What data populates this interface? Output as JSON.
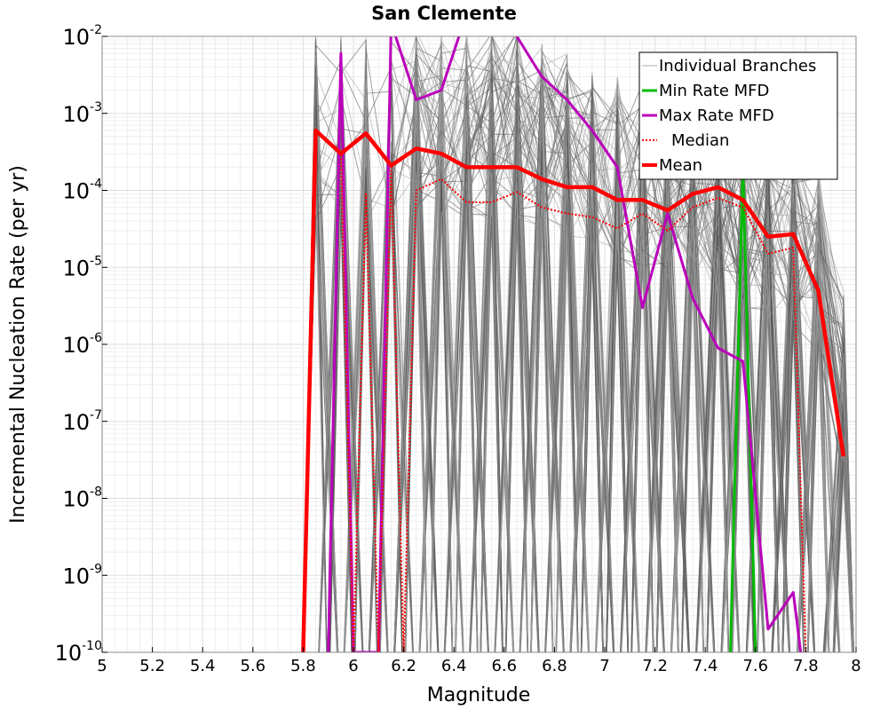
{
  "chart_data": {
    "type": "line",
    "title": "San Clemente",
    "xlabel": "Magnitude",
    "ylabel": "Incremental Nucleation Rate (per yr)",
    "xlim": [
      5,
      8
    ],
    "ylim": [
      1e-10,
      0.01
    ],
    "yscale": "log",
    "grid": true,
    "legend_position": "top-right",
    "x_ticks": [
      "5",
      "5.2",
      "5.4",
      "5.6",
      "5.8",
      "6",
      "6.2",
      "6.4",
      "6.6",
      "6.8",
      "7",
      "7.2",
      "7.4",
      "7.6",
      "7.8",
      "8"
    ],
    "y_ticks": [
      {
        "base": "10",
        "exp": "-10"
      },
      {
        "base": "10",
        "exp": "-9"
      },
      {
        "base": "10",
        "exp": "-8"
      },
      {
        "base": "10",
        "exp": "-7"
      },
      {
        "base": "10",
        "exp": "-6"
      },
      {
        "base": "10",
        "exp": "-5"
      },
      {
        "base": "10",
        "exp": "-4"
      },
      {
        "base": "10",
        "exp": "-3"
      },
      {
        "base": "10",
        "exp": "-2"
      }
    ],
    "series": [
      {
        "name": "Individual Branches",
        "color": "#555555",
        "style": "band",
        "x_bins": [
          5.85,
          5.95,
          6.05,
          6.15,
          6.25,
          6.35,
          6.45,
          6.55,
          6.65,
          6.75,
          6.85,
          6.95,
          7.05,
          7.15,
          7.25,
          7.35,
          7.45,
          7.55,
          7.65,
          7.75,
          7.85,
          7.95
        ],
        "upper": [
          0.012,
          0.012,
          0.012,
          0.012,
          0.012,
          0.012,
          0.012,
          0.012,
          0.012,
          0.009,
          0.006,
          0.004,
          0.003,
          0.0025,
          0.002,
          0.0015,
          0.0011,
          0.0009,
          0.0007,
          0.0005,
          0.00025,
          5e-06
        ],
        "lower": [
          1e-10,
          1e-10,
          1e-10,
          1e-10,
          1e-10,
          1e-10,
          1e-10,
          1e-10,
          1e-10,
          1e-10,
          1e-10,
          1e-10,
          1e-10,
          1e-10,
          1e-10,
          1e-10,
          1e-10,
          1e-10,
          1e-10,
          1e-10,
          1e-10,
          1e-10
        ]
      },
      {
        "name": "Min Rate MFD",
        "color": "#00bb00",
        "style": "solid",
        "x": [
          7.5,
          7.55,
          7.6
        ],
        "y": [
          1e-10,
          0.0002,
          1e-10
        ]
      },
      {
        "name": "Max Rate MFD",
        "color": "#bb00bb",
        "style": "solid",
        "x": [
          5.9,
          5.95,
          6.0,
          6.1,
          6.15,
          6.25,
          6.35,
          6.45,
          6.55,
          6.65,
          6.75,
          6.85,
          6.95,
          7.05,
          7.15,
          7.25,
          7.35,
          7.45,
          7.55,
          7.65,
          7.75,
          7.78
        ],
        "y": [
          1e-10,
          0.006,
          1e-10,
          1e-10,
          0.015,
          0.0015,
          0.002,
          0.02,
          0.03,
          0.01,
          0.003,
          0.0015,
          0.0006,
          0.0002,
          3e-06,
          5e-05,
          4e-06,
          9e-07,
          6e-07,
          2e-10,
          6e-10,
          1e-10
        ]
      },
      {
        "name": "Median",
        "color": "#ff0000",
        "style": "dotted",
        "x": [
          5.8,
          5.85,
          5.95,
          6.0,
          6.05,
          6.1,
          6.15,
          6.2,
          6.25,
          6.35,
          6.45,
          6.55,
          6.65,
          6.75,
          6.85,
          6.95,
          7.05,
          7.15,
          7.25,
          7.35,
          7.45,
          7.55,
          7.65,
          7.75,
          7.8
        ],
        "y": [
          1e-10,
          0.0006,
          0.0003,
          1e-10,
          9e-05,
          1e-10,
          0.0002,
          1e-10,
          0.0001,
          0.00014,
          7e-05,
          7e-05,
          9.5e-05,
          6e-05,
          5e-05,
          4.5e-05,
          3.2e-05,
          5e-05,
          3e-05,
          6e-05,
          8e-05,
          6e-05,
          1.5e-05,
          1.8e-05,
          1e-10
        ]
      },
      {
        "name": "Mean",
        "color": "#ff0000",
        "style": "thick",
        "x": [
          5.8,
          5.85,
          5.95,
          6.05,
          6.15,
          6.25,
          6.35,
          6.45,
          6.55,
          6.65,
          6.75,
          6.85,
          6.95,
          7.05,
          7.15,
          7.25,
          7.35,
          7.45,
          7.55,
          7.65,
          7.75,
          7.85,
          7.95
        ],
        "y": [
          1e-10,
          0.0006,
          0.0003,
          0.00055,
          0.00021,
          0.00035,
          0.0003,
          0.0002,
          0.0002,
          0.0002,
          0.00014,
          0.00011,
          0.00011,
          7.5e-05,
          7.5e-05,
          5.5e-05,
          9e-05,
          0.00011,
          7.5e-05,
          2.5e-05,
          2.7e-05,
          5e-06,
          3.5e-08
        ]
      }
    ]
  }
}
